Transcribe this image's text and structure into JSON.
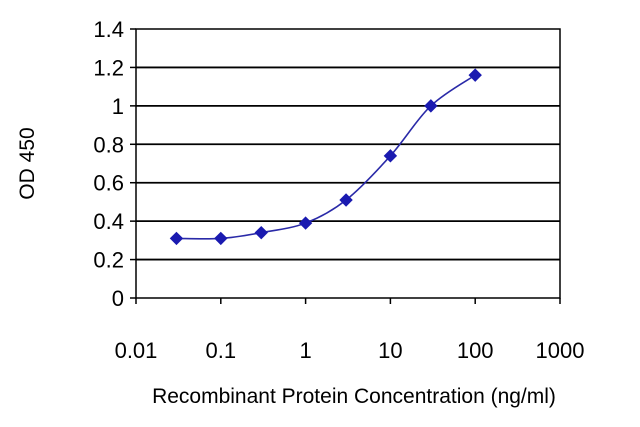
{
  "chart_data": {
    "type": "line",
    "xlabel": "Recombinant Protein Concentration (ng/ml)",
    "ylabel": "OD 450",
    "x_scale": "log",
    "xlim": [
      0.01,
      1000
    ],
    "ylim": [
      0,
      1.4
    ],
    "x_ticks": [
      "0.01",
      "0.1",
      "1",
      "10",
      "100",
      "1000"
    ],
    "y_ticks": [
      "0",
      "0.2",
      "0.4",
      "0.6",
      "0.8",
      "1",
      "1.2",
      "1.4"
    ],
    "grid": "horizontal",
    "legend": "none",
    "series": [
      {
        "color": "#2a2aa8",
        "marker": "diamond",
        "x": [
          0.03,
          0.1,
          0.3,
          1,
          3,
          10,
          30,
          100
        ],
        "y": [
          0.31,
          0.31,
          0.34,
          0.39,
          0.51,
          0.74,
          1.0,
          1.16
        ]
      }
    ]
  }
}
